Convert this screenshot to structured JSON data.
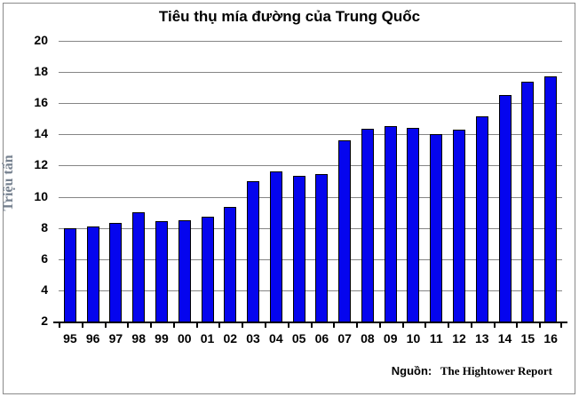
{
  "chart_data": {
    "type": "bar",
    "title": "Tiêu thụ mía đường của Trung Quốc",
    "ylabel": "Triệu tấn",
    "xlabel": "",
    "categories": [
      "95",
      "96",
      "97",
      "98",
      "99",
      "00",
      "01",
      "02",
      "03",
      "04",
      "05",
      "06",
      "07",
      "08",
      "09",
      "10",
      "11",
      "12",
      "13",
      "14",
      "15",
      "16"
    ],
    "values": [
      8.0,
      8.1,
      8.3,
      9.0,
      8.45,
      8.5,
      8.7,
      9.35,
      11.0,
      11.6,
      11.35,
      11.45,
      13.6,
      14.35,
      14.55,
      14.4,
      14.0,
      14.3,
      15.15,
      16.5,
      17.4,
      17.75
    ],
    "ylim": [
      2,
      20
    ],
    "ytick_step": 2,
    "yticks": [
      2,
      4,
      6,
      8,
      10,
      12,
      14,
      16,
      18,
      20
    ],
    "grid": true,
    "legend_position": "none",
    "bar_color": "#0505ee",
    "bar_border_color": "#000000",
    "gridline_color": "#858585",
    "ylabel_color": "#76818f",
    "source_label": "Nguồn:",
    "source_value": "The Hightower Report"
  }
}
